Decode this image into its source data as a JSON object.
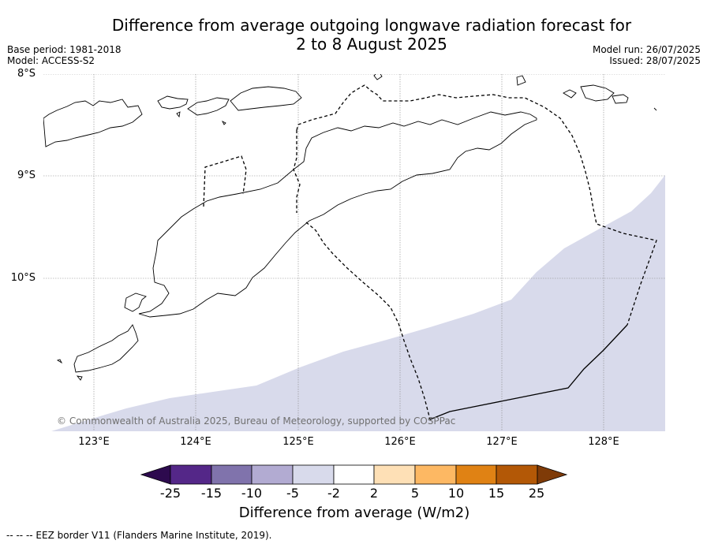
{
  "title_line1": "Difference from average outgoing longwave radiation forecast for",
  "title_line2": "2 to 8 August 2025",
  "base_period": "Base period: 1981-2018",
  "model": "Model: ACCESS-S2",
  "model_run": "Model run: 26/07/2025",
  "issued": "Issued: 28/07/2025",
  "lat_labels": [
    "8°S",
    "9°S",
    "10°S"
  ],
  "lon_labels": [
    "123°E",
    "124°E",
    "125°E",
    "126°E",
    "127°E",
    "128°E"
  ],
  "copyright": "© Commonwealth of Australia 2025, Bureau of Meteorology, supported by COSPPac",
  "colorbar": {
    "ticks": [
      "-25",
      "-15",
      "-10",
      "-5",
      "-2",
      "2",
      "5",
      "10",
      "15",
      "25"
    ],
    "colors": [
      "#2d0a4e",
      "#542788",
      "#8073ac",
      "#b2abd2",
      "#d8daeb",
      "#ffffff",
      "#fee0b6",
      "#fdb863",
      "#e08214",
      "#b35806",
      "#7f3b08"
    ],
    "label": "Difference from average (W/m2)"
  },
  "footer": "--  --  -- EEZ border V11 (Flanders Marine Institute, 2019).",
  "map": {
    "lon_range": [
      122.57,
      128.6
    ],
    "lat_range": [
      -11.5,
      -8.0
    ],
    "anomaly_color": "#d8daeb"
  }
}
